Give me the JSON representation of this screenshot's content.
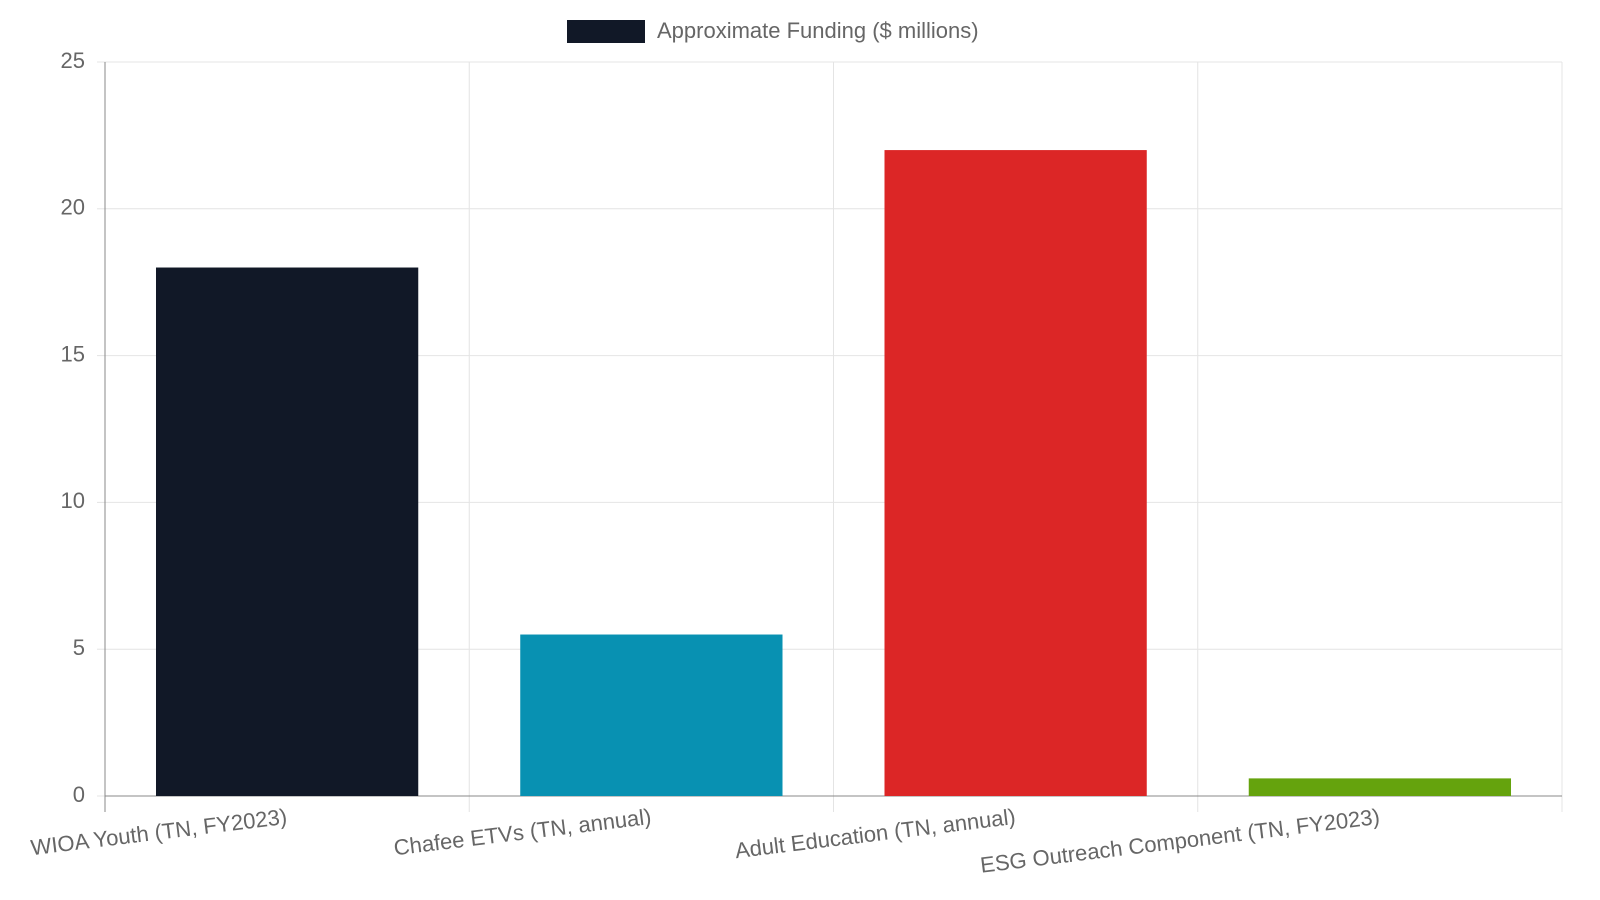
{
  "chart_data": {
    "type": "bar",
    "categories": [
      "WIOA Youth (TN, FY2023)",
      "Chafee ETVs (TN, annual)",
      "Adult Education (TN, annual)",
      "ESG Outreach Component (TN, FY2023)"
    ],
    "series": [
      {
        "name": "Approximate Funding ($ millions)",
        "color": "#111827",
        "values": [
          18,
          5.5,
          22,
          0.6
        ]
      }
    ],
    "colors": [
      "#111827",
      "#0891b2",
      "#dc2626",
      "#65a30d"
    ],
    "ylim": [
      0,
      25
    ],
    "yticks": [
      0,
      5,
      10,
      15,
      20,
      25
    ],
    "grid": true,
    "legend": "top"
  }
}
